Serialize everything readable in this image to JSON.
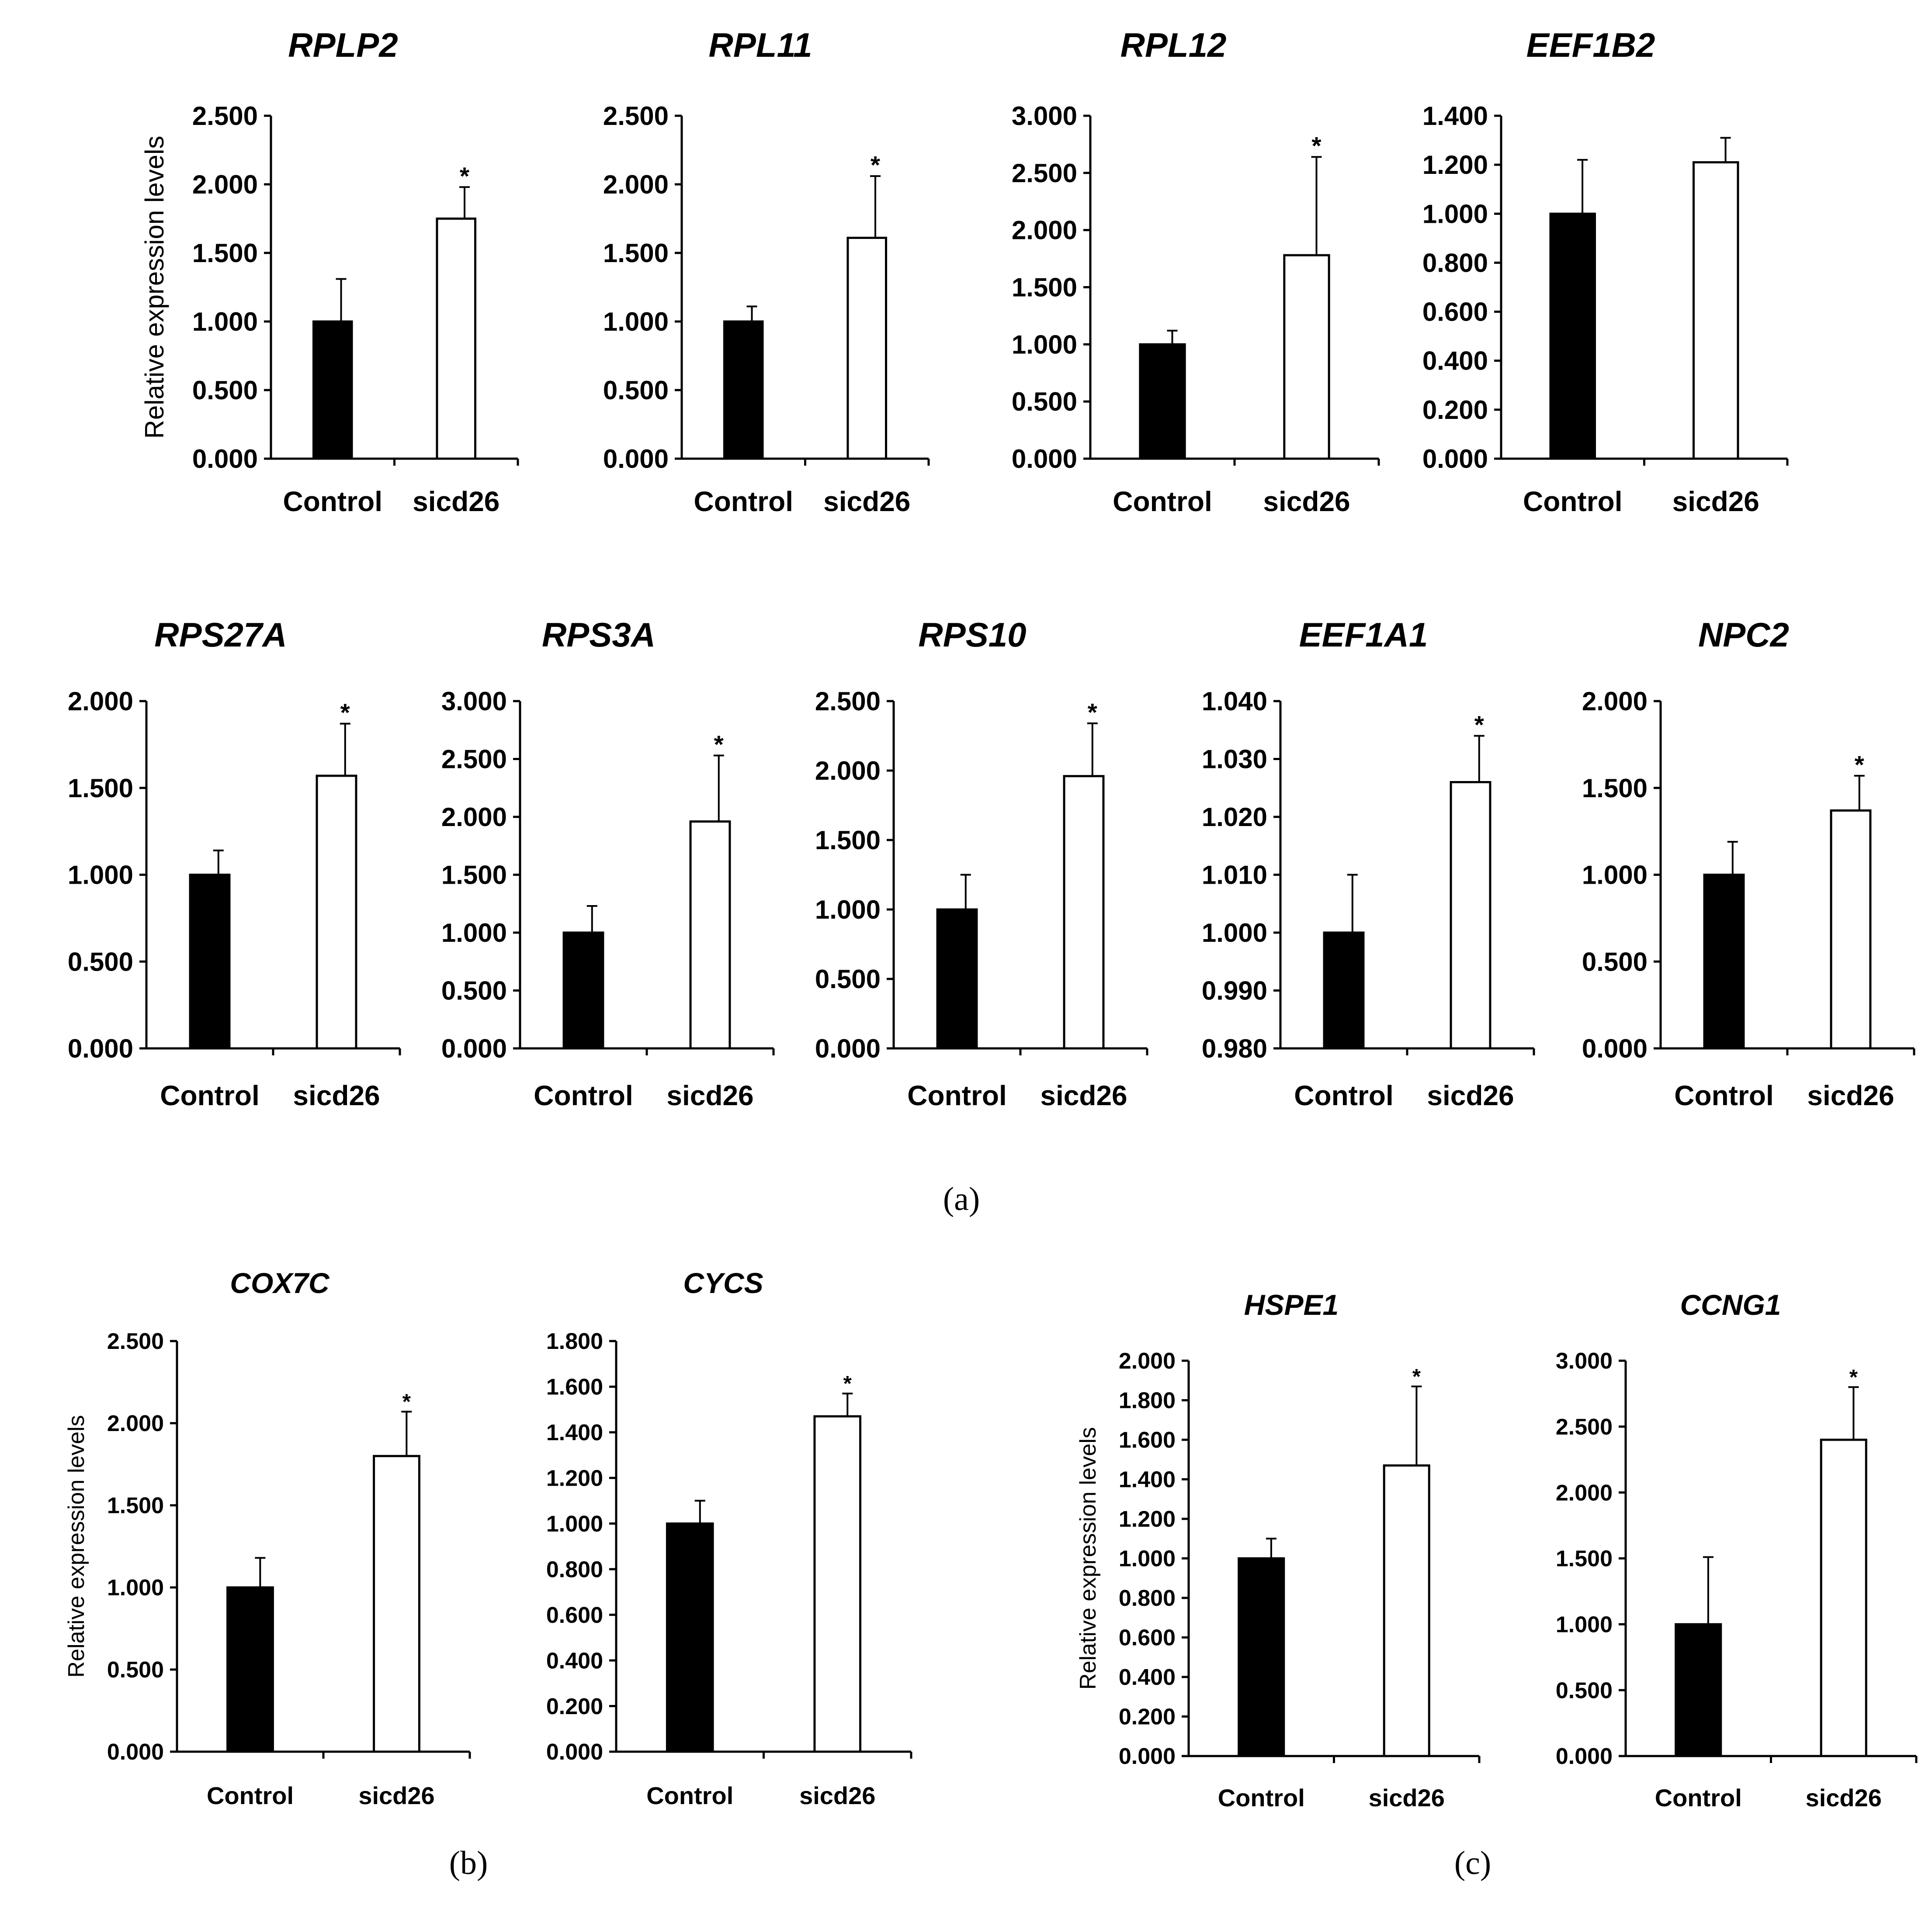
{
  "figure": {
    "ylabel": "Relative expression levels",
    "panel_labels": [
      "(a)",
      "(b)",
      "(c)"
    ],
    "significance_marker": "*"
  },
  "chart_data": [
    {
      "type": "bar",
      "title": "RPLP2",
      "categories": [
        "Control",
        "sicd26"
      ],
      "values": [
        1.0,
        1.75
      ],
      "errors": [
        0.31,
        0.23
      ],
      "significant": [
        false,
        true
      ],
      "ylim": [
        0,
        2.5
      ],
      "yticks": [
        "0.000",
        "0.500",
        "1.000",
        "1.500",
        "2.000",
        "2.500"
      ],
      "ylabel": "Relative expression levels"
    },
    {
      "type": "bar",
      "title": "RPL11",
      "categories": [
        "Control",
        "sicd26"
      ],
      "values": [
        1.0,
        1.61
      ],
      "errors": [
        0.11,
        0.45
      ],
      "significant": [
        false,
        true
      ],
      "ylim": [
        0,
        2.5
      ],
      "yticks": [
        "0.000",
        "0.500",
        "1.000",
        "1.500",
        "2.000",
        "2.500"
      ],
      "ylabel": ""
    },
    {
      "type": "bar",
      "title": "RPL12",
      "categories": [
        "Control",
        "sicd26"
      ],
      "values": [
        1.0,
        1.78
      ],
      "errors": [
        0.12,
        0.86
      ],
      "significant": [
        false,
        true
      ],
      "ylim": [
        0,
        3
      ],
      "yticks": [
        "0.000",
        "0.500",
        "1.000",
        "1.500",
        "2.000",
        "2.500",
        "3.000"
      ],
      "ylabel": ""
    },
    {
      "type": "bar",
      "title": "EEF1B2",
      "categories": [
        "Control",
        "sicd26"
      ],
      "values": [
        1.0,
        1.21
      ],
      "errors": [
        0.22,
        0.1
      ],
      "significant": [
        false,
        false
      ],
      "ylim": [
        0,
        1.4
      ],
      "yticks": [
        "0.000",
        "0.200",
        "0.400",
        "0.600",
        "0.800",
        "1.000",
        "1.200",
        "1.400"
      ],
      "ylabel": ""
    },
    {
      "type": "bar",
      "title": "RPS27A",
      "categories": [
        "Control",
        "sicd26"
      ],
      "values": [
        1.0,
        1.57
      ],
      "errors": [
        0.14,
        0.3
      ],
      "significant": [
        false,
        true
      ],
      "ylim": [
        0,
        2
      ],
      "yticks": [
        "0.000",
        "0.500",
        "1.000",
        "1.500",
        "2.000"
      ],
      "ylabel": ""
    },
    {
      "type": "bar",
      "title": "RPS3A",
      "categories": [
        "Control",
        "sicd26"
      ],
      "values": [
        1.0,
        1.96
      ],
      "errors": [
        0.23,
        0.57
      ],
      "significant": [
        false,
        true
      ],
      "ylim": [
        0,
        3
      ],
      "yticks": [
        "0.000",
        "0.500",
        "1.000",
        "1.500",
        "2.000",
        "2.500",
        "3.000"
      ],
      "ylabel": ""
    },
    {
      "type": "bar",
      "title": "RPS10",
      "categories": [
        "Control",
        "sicd26"
      ],
      "values": [
        1.0,
        1.96
      ],
      "errors": [
        0.25,
        0.38
      ],
      "significant": [
        false,
        true
      ],
      "ylim": [
        0,
        2.5
      ],
      "yticks": [
        "0.000",
        "0.500",
        "1.000",
        "1.500",
        "2.000",
        "2.500"
      ],
      "ylabel": ""
    },
    {
      "type": "bar",
      "title": "EEF1A1",
      "categories": [
        "Control",
        "sicd26"
      ],
      "values": [
        1.0,
        1.026
      ],
      "errors": [
        0.01,
        0.008
      ],
      "significant": [
        false,
        true
      ],
      "ylim": [
        0.98,
        1.04
      ],
      "yticks": [
        "0.980",
        "0.990",
        "1.000",
        "1.010",
        "1.020",
        "1.030",
        "1.040"
      ],
      "ylabel": ""
    },
    {
      "type": "bar",
      "title": "NPC2",
      "categories": [
        "Control",
        "sicd26"
      ],
      "values": [
        1.0,
        1.37
      ],
      "errors": [
        0.19,
        0.2
      ],
      "significant": [
        false,
        true
      ],
      "ylim": [
        0,
        2
      ],
      "yticks": [
        "0.000",
        "0.500",
        "1.000",
        "1.500",
        "2.000"
      ],
      "ylabel": ""
    },
    {
      "type": "bar",
      "title": "COX7C",
      "categories": [
        "Control",
        "sicd26"
      ],
      "values": [
        1.0,
        1.8
      ],
      "errors": [
        0.18,
        0.27
      ],
      "significant": [
        false,
        true
      ],
      "ylim": [
        0,
        2.5
      ],
      "yticks": [
        "0.000",
        "0.500",
        "1.000",
        "1.500",
        "2.000",
        "2.500"
      ],
      "ylabel": "Relative expression levels"
    },
    {
      "type": "bar",
      "title": "CYCS",
      "categories": [
        "Control",
        "sicd26"
      ],
      "values": [
        1.0,
        1.47
      ],
      "errors": [
        0.1,
        0.1
      ],
      "significant": [
        false,
        true
      ],
      "ylim": [
        0,
        1.8
      ],
      "yticks": [
        "0.000",
        "0.200",
        "0.400",
        "0.600",
        "0.800",
        "1.000",
        "1.200",
        "1.400",
        "1.600",
        "1.800"
      ],
      "ylabel": ""
    },
    {
      "type": "bar",
      "title": "HSPE1",
      "categories": [
        "Control",
        "sicd26"
      ],
      "values": [
        1.0,
        1.47
      ],
      "errors": [
        0.1,
        0.4
      ],
      "significant": [
        false,
        true
      ],
      "ylim": [
        0,
        2
      ],
      "yticks": [
        "0.000",
        "0.200",
        "0.400",
        "0.600",
        "0.800",
        "1.000",
        "1.200",
        "1.400",
        "1.600",
        "1.800",
        "2.000"
      ],
      "ylabel": "Relative expression levels"
    },
    {
      "type": "bar",
      "title": "CCNG1",
      "categories": [
        "Control",
        "sicd26"
      ],
      "values": [
        1.0,
        2.4
      ],
      "errors": [
        0.51,
        0.4
      ],
      "significant": [
        false,
        true
      ],
      "ylim": [
        0,
        3
      ],
      "yticks": [
        "0.000",
        "0.500",
        "1.000",
        "1.500",
        "2.000",
        "2.500",
        "3.000"
      ],
      "ylabel": ""
    }
  ]
}
